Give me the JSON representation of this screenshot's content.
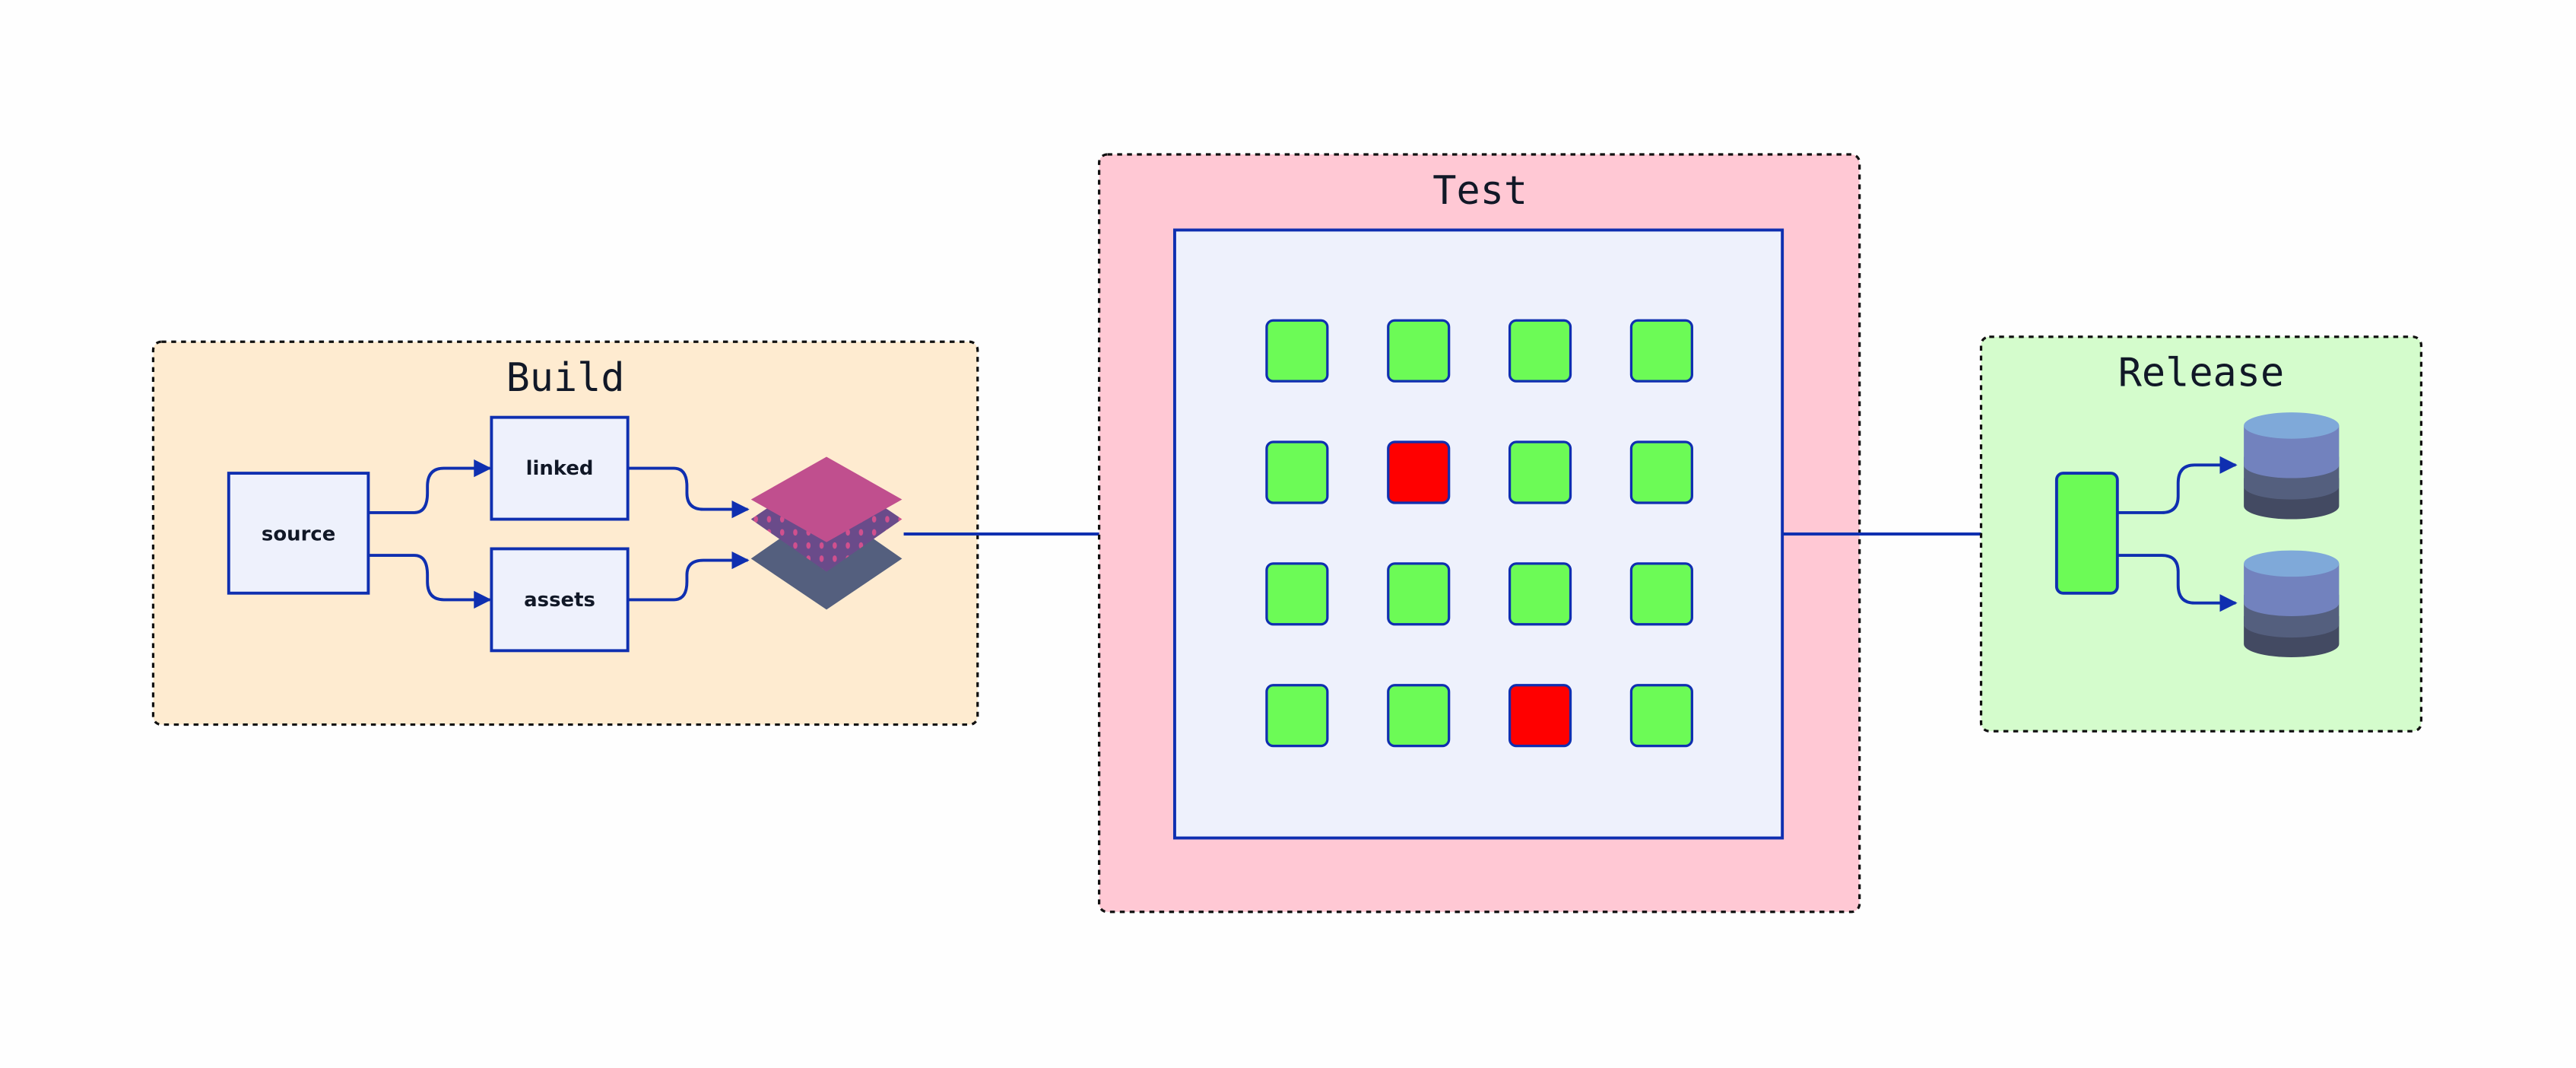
{
  "colors": {
    "edge": "#0f2fb0",
    "build_bg": "#feebd0",
    "test_bg": "#ffc8d4",
    "release_bg": "#d4fccc",
    "node_fill": "#eef1fc",
    "pass": "#6cfb56",
    "fail": "#ff0000"
  },
  "build": {
    "title": "Build",
    "nodes": {
      "source": "source",
      "linked": "linked",
      "assets": "assets"
    },
    "output_icon": "layers-icon"
  },
  "test": {
    "title": "Test",
    "grid": [
      [
        "pass",
        "pass",
        "pass",
        "pass"
      ],
      [
        "pass",
        "fail",
        "pass",
        "pass"
      ],
      [
        "pass",
        "pass",
        "pass",
        "pass"
      ],
      [
        "pass",
        "pass",
        "fail",
        "pass"
      ]
    ]
  },
  "release": {
    "title": "Release",
    "targets": [
      "database-icon",
      "database-icon"
    ]
  }
}
